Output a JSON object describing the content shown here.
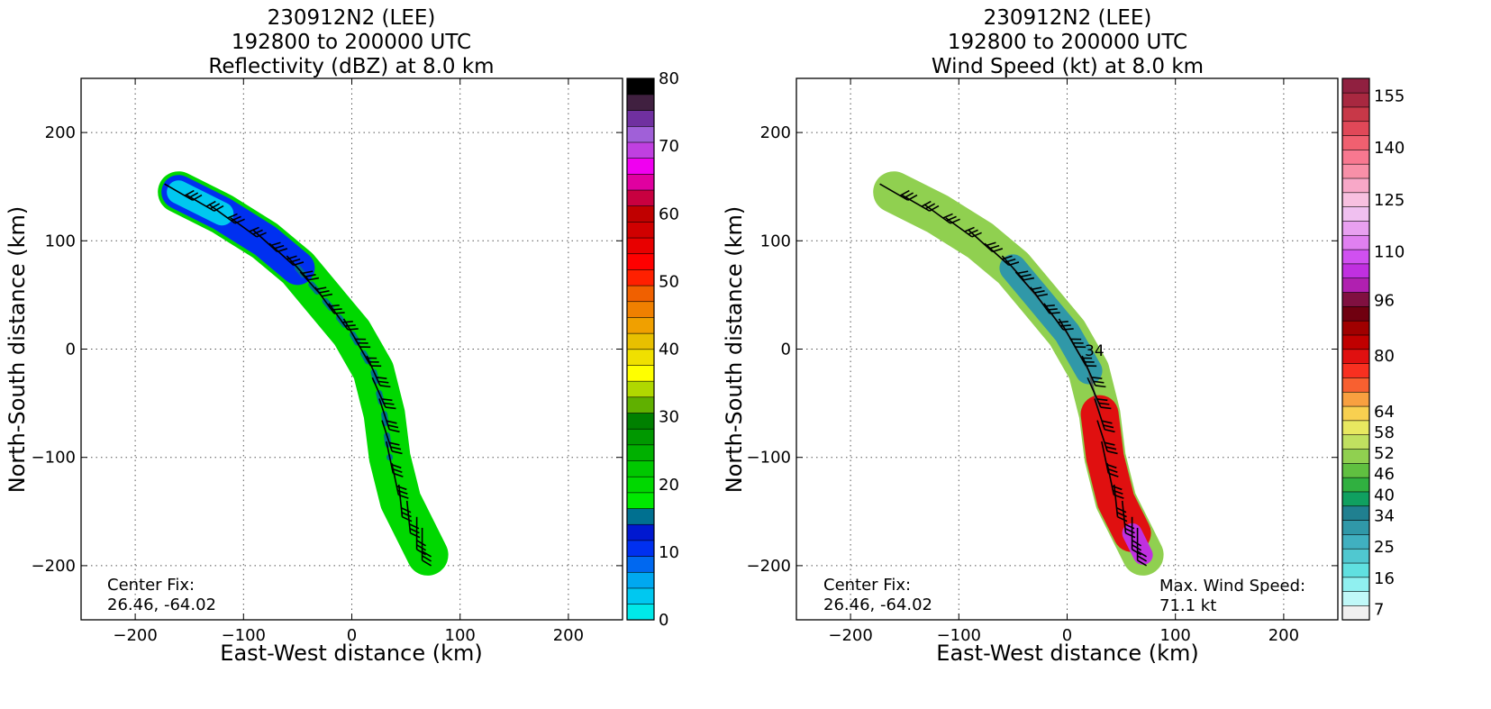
{
  "panels": [
    {
      "title_lines": [
        "230912N2 (LEE)",
        "192800 to 200000 UTC",
        "Reflectivity (dBZ) at 8.0 km"
      ],
      "center_fix_label": "Center Fix:",
      "center_fix_value": "26.46, -64.02"
    },
    {
      "title_lines": [
        "230912N2 (LEE)",
        "192800 to 200000 UTC",
        "Wind Speed (kt) at 8.0 km"
      ],
      "center_fix_label": "Center Fix:",
      "center_fix_value": "26.46, -64.02",
      "max_wind_label": "Max. Wind Speed:",
      "max_wind_value": "71.1 kt",
      "contour_label": "34"
    }
  ],
  "chart_data": [
    {
      "type": "heatmap",
      "title": "230912N2 (LEE) 192800 to 200000 UTC Reflectivity (dBZ) at 8.0 km",
      "xlabel": "East-West distance (km)",
      "ylabel": "North-South distance (km)",
      "xlim": [
        -250,
        250
      ],
      "ylim": [
        -250,
        250
      ],
      "xticks": [
        -200,
        -100,
        0,
        100,
        200
      ],
      "yticks": [
        -200,
        -100,
        0,
        100,
        200
      ],
      "grid": true,
      "colorbar": {
        "min": 0,
        "max": 80,
        "ticks": [
          0,
          10,
          20,
          30,
          40,
          50,
          60,
          70,
          80
        ],
        "colors": [
          "#00e8e8",
          "#00c8f0",
          "#00a8f0",
          "#0068f0",
          "#0030f0",
          "#0018d0",
          "#007090",
          "#00e800",
          "#00d800",
          "#00c800",
          "#00b000",
          "#009800",
          "#008000",
          "#60b000",
          "#b0d800",
          "#ffff00",
          "#f0e000",
          "#e8c000",
          "#f0a000",
          "#f08000",
          "#f06000",
          "#ff2000",
          "#ff0000",
          "#e80000",
          "#d00000",
          "#c00000",
          "#c80040",
          "#e000a0",
          "#f000f0",
          "#c040e0",
          "#a060d8",
          "#7030a0",
          "#402040",
          "#000000"
        ]
      },
      "swath_centerline": [
        [
          -160,
          145
        ],
        [
          -120,
          125
        ],
        [
          -80,
          100
        ],
        [
          -50,
          75
        ],
        [
          -25,
          45
        ],
        [
          0,
          15
        ],
        [
          20,
          -20
        ],
        [
          30,
          -60
        ],
        [
          35,
          -100
        ],
        [
          45,
          -140
        ],
        [
          60,
          -170
        ],
        [
          70,
          -190
        ]
      ]
    },
    {
      "type": "heatmap",
      "title": "230912N2 (LEE) 192800 to 200000 UTC Wind Speed (kt) at 8.0 km",
      "xlabel": "East-West distance (km)",
      "ylabel": "North-South distance (km)",
      "xlim": [
        -250,
        250
      ],
      "ylim": [
        -250,
        250
      ],
      "xticks": [
        -200,
        -100,
        0,
        100,
        200
      ],
      "yticks": [
        -200,
        -100,
        0,
        100,
        200
      ],
      "grid": true,
      "max_wind_speed_kt": 71.1,
      "contour_kt": 34,
      "colorbar": {
        "min": 4,
        "max": 160,
        "ticks": [
          7,
          16,
          25,
          34,
          40,
          46,
          52,
          58,
          64,
          80,
          96,
          110,
          125,
          140,
          155
        ],
        "colors": [
          "#f0f0f0",
          "#c0f8f8",
          "#90f0f0",
          "#60e0e0",
          "#50c8d0",
          "#40b0c0",
          "#3098a8",
          "#208090",
          "#10a060",
          "#30b040",
          "#60c040",
          "#90d050",
          "#c0e060",
          "#e8e860",
          "#f8d050",
          "#f8a040",
          "#f86030",
          "#f83020",
          "#e01010",
          "#c00000",
          "#a00000",
          "#700010",
          "#801040",
          "#b020b0",
          "#c030e0",
          "#d050f0",
          "#e080f0",
          "#e8a0f0",
          "#f0c0f0",
          "#f8c0e0",
          "#f8a8c8",
          "#f890a8",
          "#f87890",
          "#f06070",
          "#e04858",
          "#c83848",
          "#a82840",
          "#902040"
        ]
      },
      "swath_centerline": [
        [
          -160,
          145
        ],
        [
          -120,
          125
        ],
        [
          -80,
          100
        ],
        [
          -50,
          75
        ],
        [
          -25,
          45
        ],
        [
          0,
          15
        ],
        [
          20,
          -20
        ],
        [
          30,
          -60
        ],
        [
          35,
          -100
        ],
        [
          45,
          -140
        ],
        [
          60,
          -170
        ],
        [
          70,
          -190
        ]
      ]
    }
  ]
}
